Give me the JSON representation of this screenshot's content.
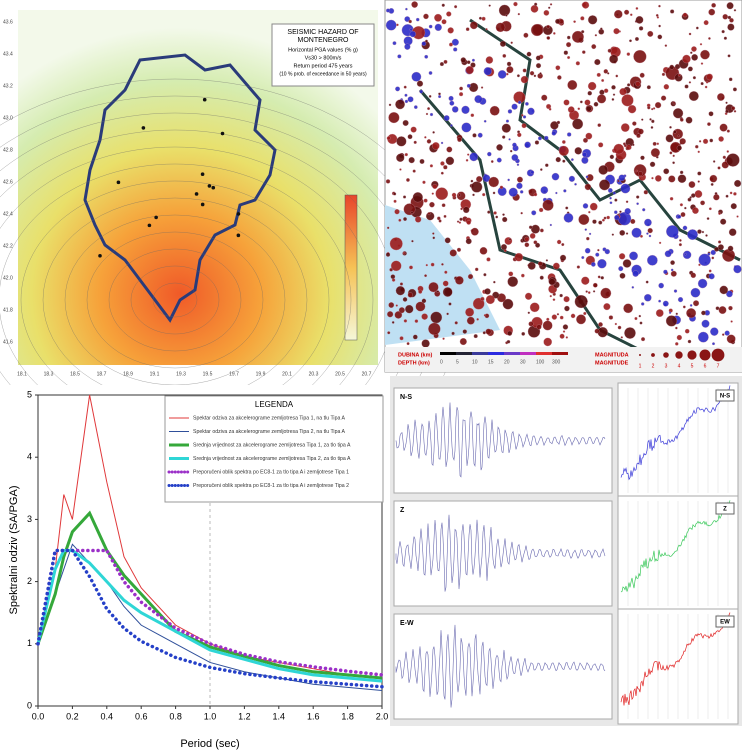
{
  "hazard_map": {
    "title_lines": [
      "SEISMIC HAZARD OF",
      "MONTENEGRO"
    ],
    "subtitle_lines": [
      "Horizontal PGA values (% g)",
      "Vs30 > 800m/s",
      "Return period 475 years",
      "(10 % prob. of exceedance in 50 years)"
    ],
    "lat_labels": [
      "43.6",
      "43.4",
      "43.2",
      "43.0",
      "42.8",
      "42.6",
      "42.4",
      "42.2",
      "42.0",
      "41.8",
      "41.6"
    ],
    "lon_labels": [
      "18.1",
      "18.3",
      "18.5",
      "18.7",
      "18.9",
      "19.1",
      "19.3",
      "19.5",
      "19.7",
      "19.9",
      "20.1",
      "20.3",
      "20.5",
      "20.7"
    ]
  },
  "seismicity_map": {
    "depth_label": "DUBINA (km)",
    "depth_label_en": "DEPTH (km)",
    "depth_ticks": [
      "0",
      "5",
      "10",
      "15",
      "20",
      "30",
      "100",
      "300"
    ],
    "magnitude_label": "MAGNITUDA",
    "magnitude_label_en": "MAGNITUDE",
    "magnitude_ticks": [
      "1",
      "2",
      "3",
      "4",
      "5",
      "6",
      "7"
    ]
  },
  "chart_data": {
    "type": "line",
    "x_label": "Period (sec)",
    "y_label": "Spektralni odziv (SA/PGA)",
    "legend_title": "LEGENDA",
    "x": [
      0,
      0.1,
      0.15,
      0.2,
      0.3,
      0.4,
      0.5,
      0.6,
      0.8,
      1.0,
      1.2,
      1.4,
      1.6,
      1.8,
      2.0
    ],
    "xlim": [
      0,
      2
    ],
    "ylim": [
      0,
      5
    ],
    "xticks": [
      {
        "value": 0,
        "label": "0.0"
      },
      0.2,
      0.4,
      0.6,
      0.8,
      {
        "value": 1,
        "label": "1.0"
      },
      1.2,
      1.4,
      1.6,
      1.8,
      {
        "value": 2,
        "label": "2.0"
      }
    ],
    "yticks": [
      0,
      1,
      2,
      3,
      4,
      5
    ],
    "series": [
      {
        "name": "Spektar odziva za akcelerograme zemljotresa Tipa 1, na tlu Tipa A",
        "color": "#e0383a",
        "style": "solid",
        "values": [
          1.0,
          2.2,
          3.4,
          3.0,
          5.0,
          3.6,
          2.4,
          1.9,
          1.3,
          1.0,
          0.8,
          0.7,
          0.6,
          0.5,
          0.45
        ]
      },
      {
        "name": "Spektar odziva za akcelerograme zemljotresa Tipa 2, na tlu Tipa A",
        "color": "#2f4f9a",
        "style": "solid",
        "values": [
          1.0,
          1.8,
          2.2,
          2.6,
          2.3,
          2.0,
          1.6,
          1.3,
          1.0,
          0.7,
          0.55,
          0.45,
          0.35,
          0.3,
          0.25
        ]
      },
      {
        "name": "Srednja vrijednost za akcelerograme zemljotresa Tipa 1, za tlo tipa A",
        "color": "#35a83a",
        "style": "thick",
        "values": [
          1.0,
          1.8,
          2.4,
          2.8,
          3.1,
          2.5,
          2.1,
          1.8,
          1.2,
          0.95,
          0.8,
          0.65,
          0.55,
          0.5,
          0.45
        ]
      },
      {
        "name": "Srednja vrijednost za akcelerograme zemljotresa Tipa 2, za tlo tipa A",
        "color": "#2fd6d6",
        "style": "thick",
        "values": [
          1.0,
          2.2,
          2.5,
          2.5,
          2.3,
          2.0,
          1.7,
          1.5,
          1.2,
          0.9,
          0.75,
          0.6,
          0.5,
          0.45,
          0.4
        ]
      },
      {
        "name": "Preporučeni oblik spektra po EC8-1 za tlo tipa A i zemljotrese Tipa 1",
        "color": "#9b30c8",
        "style": "dotted",
        "values": [
          1.0,
          2.5,
          2.5,
          2.5,
          2.5,
          2.5,
          2.0,
          1.67,
          1.25,
          1.0,
          0.83,
          0.71,
          0.63,
          0.56,
          0.5
        ]
      },
      {
        "name": "Preporučeni oblik spektra po EC8-1 za tlo tipa A i zemljotrese Tipa 2",
        "color": "#2540c8",
        "style": "dotted",
        "values": [
          1.0,
          2.5,
          2.5,
          2.5,
          2.08,
          1.56,
          1.25,
          1.04,
          0.78,
          0.62,
          0.52,
          0.45,
          0.39,
          0.35,
          0.31
        ]
      }
    ]
  },
  "records": {
    "trace_labels": [
      "N-S",
      "Z",
      "E-W"
    ],
    "spectrum_labels": [
      "N-S",
      "Z",
      "EW"
    ]
  }
}
